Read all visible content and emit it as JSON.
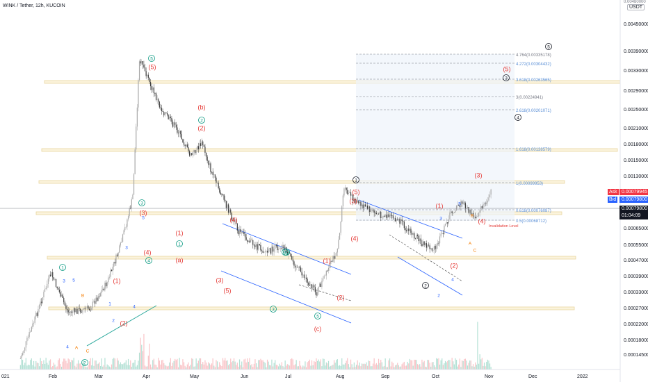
{
  "header": {
    "title": "WINK / Tether, 12h, KUCOIN",
    "quote_unit": "USDT"
  },
  "colors": {
    "bull": "#a8a8a8",
    "bear": "#3d3d3d",
    "wave_green": "#089981",
    "wave_red": "#e53935",
    "wave_blue": "#2962ff",
    "wave_orange": "#f57c00",
    "wave_black": "#131722",
    "zone": "#e8d6a0",
    "fib": "#787b86",
    "ask": "#f23645",
    "bid": "#2962ff"
  },
  "price_scale": {
    "labels": [
      "0.00450000",
      "0.00390000",
      "0.00330000",
      "0.00290000",
      "0.00250000",
      "0.00210000",
      "0.00180000",
      "0.00150000",
      "0.00130000",
      "0.00110000",
      "0.00079800",
      "0.00065000",
      "0.00055000",
      "0.00047000",
      "0.00039000",
      "0.00033000",
      "0.00027000",
      "0.00022000",
      "0.00018000",
      "0.00014500"
    ],
    "top_cut_label": "0.00480000",
    "ask_label": "Ask",
    "ask_value": "0.00079945",
    "bid_label": "Bid",
    "bid_value": "0.00079800",
    "last_value": "0.00079800",
    "countdown": "01:04:09"
  },
  "time_axis": [
    "021",
    "Feb",
    "Mar",
    "Apr",
    "May",
    "Jun",
    "Jul",
    "Aug",
    "Sep",
    "Oct",
    "Nov",
    "Dec",
    "2022"
  ],
  "fib_levels": [
    {
      "label": "4.764(0.00335178)"
    },
    {
      "label": "4.272(0.00304432)"
    },
    {
      "label": "3.618(0.00263565)"
    },
    {
      "label": "3(0.00224941)"
    },
    {
      "label": "2.618(0.00201071)"
    },
    {
      "label": "1.618(0.00138579)"
    },
    {
      "label": "1(0.00099953)"
    },
    {
      "label": "0.618(0.00076087)"
    },
    {
      "label": "0.5(0.00068712)"
    }
  ],
  "annotations": {
    "invalidation": "Invalidation Level",
    "labels": [
      {
        "t": "1",
        "c": "green",
        "circle": true
      },
      {
        "t": "2",
        "c": "green",
        "circle": true
      },
      {
        "t": "3",
        "c": "green",
        "circle": true
      },
      {
        "t": "4",
        "c": "green",
        "circle": true
      },
      {
        "t": "5",
        "c": "green",
        "circle": true
      },
      {
        "t": "(5)",
        "c": "red"
      },
      {
        "t": "(b)",
        "c": "red"
      },
      {
        "t": "2",
        "c": "green",
        "circle": true
      },
      {
        "t": "(2)",
        "c": "red"
      },
      {
        "t": "(a)",
        "c": "red"
      },
      {
        "t": "1",
        "c": "green",
        "circle": true
      },
      {
        "t": "(1)",
        "c": "red"
      },
      {
        "t": "(3)",
        "c": "red"
      },
      {
        "t": "(4)",
        "c": "red"
      },
      {
        "t": "4",
        "c": "green",
        "circle": true
      },
      {
        "t": "3",
        "c": "blue"
      },
      {
        "t": "5",
        "c": "blue"
      },
      {
        "t": "(1)",
        "c": "red"
      },
      {
        "t": "(2)",
        "c": "red"
      },
      {
        "t": "3",
        "c": "blue"
      },
      {
        "t": "5",
        "c": "blue"
      },
      {
        "t": "4",
        "c": "blue"
      },
      {
        "t": "1",
        "c": "blue"
      },
      {
        "t": "2",
        "c": "blue"
      },
      {
        "t": "4",
        "c": "blue"
      },
      {
        "t": "B",
        "c": "orange"
      },
      {
        "t": "A",
        "c": "orange"
      },
      {
        "t": "C",
        "c": "orange"
      },
      {
        "t": "(4)",
        "c": "red"
      },
      {
        "t": "(3)",
        "c": "red"
      },
      {
        "t": "(5)",
        "c": "red"
      },
      {
        "t": "3",
        "c": "green",
        "circle": true
      },
      {
        "t": "4",
        "c": "green",
        "circle": true
      },
      {
        "t": "(1)",
        "c": "red"
      },
      {
        "t": "(2)",
        "c": "red"
      },
      {
        "t": "5",
        "c": "green",
        "circle": true
      },
      {
        "t": "(c)",
        "c": "red"
      },
      {
        "t": "1",
        "c": "black",
        "circle": true
      },
      {
        "t": "(5)",
        "c": "red"
      },
      {
        "t": "(3)",
        "c": "red"
      },
      {
        "t": "(4)",
        "c": "red"
      },
      {
        "t": "2",
        "c": "black",
        "circle": true
      },
      {
        "t": "(1)",
        "c": "red"
      },
      {
        "t": "3",
        "c": "blue"
      },
      {
        "t": "5",
        "c": "blue"
      },
      {
        "t": "4",
        "c": "blue"
      },
      {
        "t": "2",
        "c": "blue"
      },
      {
        "t": "(2)",
        "c": "red"
      },
      {
        "t": "(3)",
        "c": "red"
      },
      {
        "t": "(4)",
        "c": "red"
      },
      {
        "t": "B",
        "c": "orange"
      },
      {
        "t": "A",
        "c": "orange"
      },
      {
        "t": "C",
        "c": "orange"
      },
      {
        "t": "5",
        "c": "black",
        "circle": true
      },
      {
        "t": "3",
        "c": "black",
        "circle": true
      },
      {
        "t": "4",
        "c": "black",
        "circle": true
      },
      {
        "t": "(5)",
        "c": "red"
      }
    ]
  },
  "chart_data": {
    "type": "candlestick",
    "title": "WINK / Tether, 12h, KUCOIN",
    "symbol": "WINK/USDT",
    "interval": "12h",
    "exchange": "KUCOIN",
    "scale": "log",
    "x": [
      "2021-01-28",
      "2021-02-05",
      "2021-02-15",
      "2021-02-25",
      "2021-03-10",
      "2021-03-20",
      "2021-03-28",
      "2021-04-04",
      "2021-04-08",
      "2021-04-20",
      "2021-05-01",
      "2021-05-08",
      "2021-05-15",
      "2021-05-20",
      "2021-05-25",
      "2021-06-05",
      "2021-06-15",
      "2021-06-22",
      "2021-07-01",
      "2021-07-10",
      "2021-07-21",
      "2021-07-28",
      "2021-08-03",
      "2021-08-06",
      "2021-08-15",
      "2021-08-25",
      "2021-09-07",
      "2021-09-21",
      "2021-09-29",
      "2021-10-08",
      "2021-10-15",
      "2021-10-22",
      "2021-10-29",
      "2021-11-01"
    ],
    "close": [
      0.000145,
      0.00021,
      0.00034,
      0.00023,
      0.00024,
      0.00031,
      0.00045,
      0.00072,
      0.0029,
      0.0018,
      0.0014,
      0.0011,
      0.00125,
      0.00095,
      0.00078,
      0.00052,
      0.00045,
      0.00042,
      0.00045,
      0.00036,
      0.00028,
      0.00035,
      0.00045,
      0.00079,
      0.00068,
      0.00062,
      0.00058,
      0.00046,
      0.00043,
      0.00062,
      0.00069,
      0.00059,
      0.00069,
      0.000798
    ],
    "ylim": [
      0.00013,
      0.0048
    ],
    "grid": false,
    "legend": "none"
  }
}
